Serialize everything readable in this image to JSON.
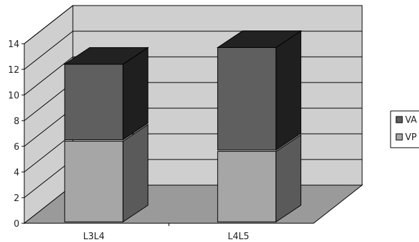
{
  "chart_data": {
    "type": "bar",
    "stacked": true,
    "three_d": true,
    "categories": [
      "L3L4",
      "L4L5"
    ],
    "series": [
      {
        "name": "VP",
        "values": [
          6.4,
          5.6
        ],
        "color": "#a6a6a6"
      },
      {
        "name": "VA",
        "values": [
          6.0,
          8.1
        ],
        "color": "#5f5f5f"
      }
    ],
    "yticks": [
      0,
      2,
      4,
      6,
      8,
      10,
      12,
      14
    ],
    "ylim": [
      0,
      14
    ],
    "grid": true,
    "legend_position": "right",
    "legend_order": [
      "VA",
      "VP"
    ],
    "colors": {
      "wall": "#cfcfcf",
      "floor": "#9a9a9a",
      "grid": "#000000",
      "bar_top_dark": "#222222",
      "bar_side_dark": "#1f1f1f",
      "bar_side_light": "#5a5a5a"
    }
  }
}
